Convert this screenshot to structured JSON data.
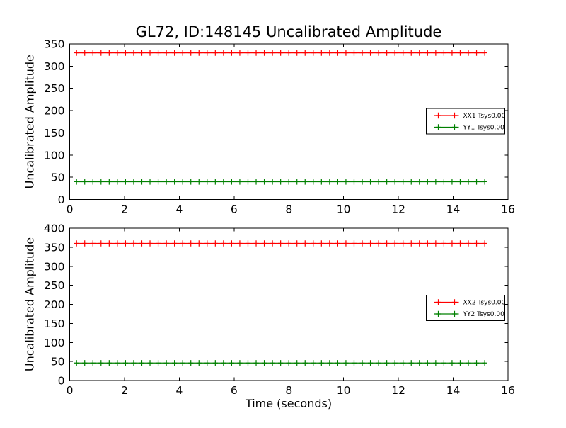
{
  "figure": {
    "title": "GL72, ID:148145 Uncalibrated Amplitude",
    "background_color": "#ffffff",
    "axes_color": "#000000",
    "text_color": "#000000"
  },
  "chart_data": [
    {
      "type": "line",
      "subplot": "top",
      "title": "GL72, ID:148145 Uncalibrated Amplitude",
      "xlabel": "",
      "ylabel": "Uncalibrated Amplitude",
      "xlim": [
        0,
        16
      ],
      "ylim": [
        0,
        350
      ],
      "xticks": [
        0,
        2,
        4,
        6,
        8,
        10,
        12,
        14,
        16
      ],
      "yticks": [
        0,
        50,
        100,
        150,
        200,
        250,
        300,
        350
      ],
      "grid": false,
      "x_points": {
        "start": 0.25,
        "end": 15.15,
        "n": 51
      },
      "series": [
        {
          "name": "XX1 Tsys0.00",
          "color": "#ff0000",
          "constant_value": 330,
          "marker": "plus"
        },
        {
          "name": "YY1 Tsys0.00",
          "color": "#008000",
          "constant_value": 40,
          "marker": "plus"
        }
      ],
      "legend": {
        "position": "center-right",
        "entries": [
          "XX1 Tsys0.00",
          "YY1 Tsys0.00"
        ]
      }
    },
    {
      "type": "line",
      "subplot": "bottom",
      "title": "",
      "xlabel": "Time (seconds)",
      "ylabel": "Uncalibrated Amplitude",
      "xlim": [
        0,
        16
      ],
      "ylim": [
        0,
        400
      ],
      "xticks": [
        0,
        2,
        4,
        6,
        8,
        10,
        12,
        14,
        16
      ],
      "yticks": [
        0,
        50,
        100,
        150,
        200,
        250,
        300,
        350,
        400
      ],
      "grid": false,
      "x_points": {
        "start": 0.25,
        "end": 15.15,
        "n": 51
      },
      "series": [
        {
          "name": "XX2 Tsys0.00",
          "color": "#ff0000",
          "constant_value": 360,
          "marker": "plus"
        },
        {
          "name": "YY2 Tsys0.00",
          "color": "#008000",
          "constant_value": 46,
          "marker": "plus"
        }
      ],
      "legend": {
        "position": "center-right",
        "entries": [
          "XX2 Tsys0.00",
          "YY2 Tsys0.00"
        ]
      }
    }
  ]
}
